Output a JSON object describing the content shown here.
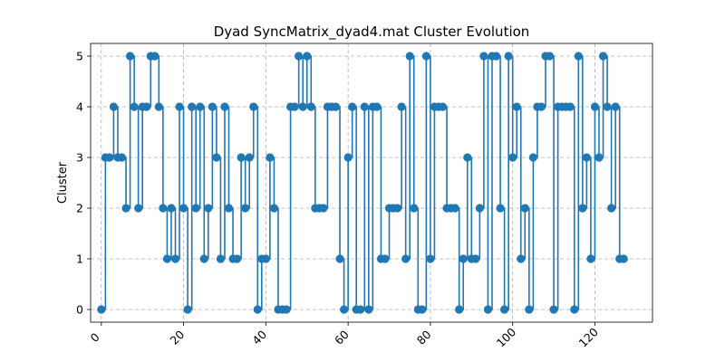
{
  "chart_data": {
    "type": "step-line",
    "title": "Dyad SyncMatrix_dyad4.mat Cluster Evolution",
    "xlabel": "",
    "ylabel": "Cluster",
    "xlim": [
      -2.6,
      134
    ],
    "ylim": [
      -0.25,
      5.25
    ],
    "xticks": [
      0,
      20,
      40,
      60,
      80,
      100,
      120
    ],
    "yticks": [
      0,
      1,
      2,
      3,
      4,
      5
    ],
    "grid": true,
    "series": [
      {
        "name": "cluster",
        "color": "#1f77b4",
        "x": [
          0,
          1,
          2,
          3,
          4,
          5,
          6,
          7,
          8,
          9,
          10,
          11,
          12,
          13,
          14,
          15,
          16,
          17,
          18,
          19,
          20,
          21,
          22,
          23,
          24,
          25,
          26,
          27,
          28,
          29,
          30,
          31,
          32,
          33,
          34,
          35,
          36,
          37,
          38,
          39,
          40,
          41,
          42,
          43,
          44,
          45,
          46,
          47,
          48,
          49,
          50,
          51,
          52,
          53,
          54,
          55,
          56,
          57,
          58,
          59,
          60,
          61,
          62,
          63,
          64,
          65,
          66,
          67,
          68,
          69,
          70,
          71,
          72,
          73,
          74,
          75,
          76,
          77,
          78,
          79,
          80,
          81,
          82,
          83,
          84,
          85,
          86,
          87,
          88,
          89,
          90,
          91,
          92,
          93,
          94,
          95,
          96,
          97,
          98,
          99,
          100,
          101,
          102,
          103,
          104,
          105,
          106,
          107,
          108,
          109,
          110,
          111,
          112,
          113,
          114,
          115,
          116,
          117,
          118,
          119,
          120,
          121,
          122,
          123,
          124,
          125,
          126,
          127
        ],
        "values": [
          0,
          3,
          3,
          4,
          3,
          3,
          2,
          5,
          4,
          2,
          4,
          4,
          5,
          5,
          4,
          2,
          1,
          2,
          1,
          4,
          2,
          0,
          4,
          2,
          4,
          1,
          2,
          4,
          3,
          1,
          4,
          2,
          1,
          1,
          3,
          2,
          3,
          4,
          0,
          1,
          1,
          3,
          2,
          0,
          0,
          0,
          4,
          4,
          5,
          4,
          5,
          4,
          2,
          2,
          2,
          4,
          4,
          4,
          1,
          0,
          3,
          4,
          0,
          0,
          4,
          0,
          4,
          4,
          1,
          1,
          2,
          2,
          2,
          4,
          1,
          5,
          2,
          0,
          0,
          5,
          1,
          4,
          4,
          4,
          2,
          2,
          2,
          0,
          1,
          3,
          1,
          1,
          2,
          5,
          0,
          5,
          5,
          2,
          0,
          5,
          3,
          4,
          1,
          2,
          0,
          3,
          4,
          4,
          5,
          5,
          0,
          4,
          4,
          4,
          4,
          0,
          5,
          2,
          3,
          1,
          4,
          3,
          5,
          4,
          2,
          4,
          1,
          1
        ]
      }
    ]
  }
}
